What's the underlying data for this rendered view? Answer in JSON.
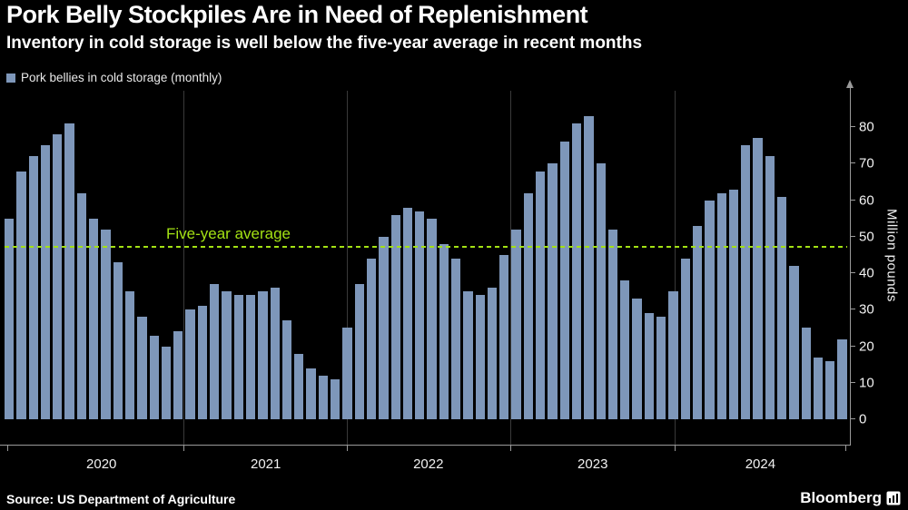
{
  "chart_data": {
    "type": "bar",
    "title": "Pork Belly Stockpiles Are in Need of Replenishment",
    "subtitle": "Inventory in cold storage is well below the five-year average in recent months",
    "legend": {
      "label": "Pork bellies in cold storage (monthly)"
    },
    "bar_color": "#7e97ba",
    "background": "#000000",
    "values": [
      55,
      68,
      72,
      75,
      78,
      81,
      62,
      55,
      52,
      43,
      35,
      28,
      23,
      20,
      24,
      30,
      31,
      37,
      35,
      34,
      34,
      35,
      36,
      27,
      18,
      14,
      12,
      11,
      25,
      37,
      44,
      50,
      56,
      58,
      57,
      55,
      48,
      44,
      35,
      34,
      36,
      45,
      52,
      62,
      68,
      70,
      76,
      81,
      83,
      70,
      52,
      38,
      33,
      29,
      28,
      35,
      44,
      53,
      60,
      62,
      63,
      75,
      77,
      72,
      61,
      42,
      25,
      17,
      16,
      22
    ],
    "average_line": {
      "label": "Five-year average",
      "value": 47,
      "color": "#a3e114",
      "style": "dashed"
    },
    "y_axis": {
      "label": "Million pounds",
      "ticks": [
        0,
        10,
        20,
        30,
        40,
        50,
        60,
        70,
        80
      ],
      "ylim": [
        0,
        90
      ],
      "side": "right"
    },
    "x_axis": {
      "year_labels": [
        {
          "label": "2020",
          "pos_pct": 11.5
        },
        {
          "label": "2021",
          "pos_pct": 31.0
        },
        {
          "label": "2022",
          "pos_pct": 50.3
        },
        {
          "label": "2023",
          "pos_pct": 69.8
        },
        {
          "label": "2024",
          "pos_pct": 89.7
        }
      ],
      "tick_positions_pct": [
        0.3,
        21.2,
        40.6,
        60.0,
        79.5,
        99.8
      ],
      "gridline_positions_pct": [
        21.2,
        40.6,
        60.0,
        79.5
      ]
    }
  },
  "footer": {
    "source": "Source: US Department of Agriculture",
    "brand": "Bloomberg"
  }
}
